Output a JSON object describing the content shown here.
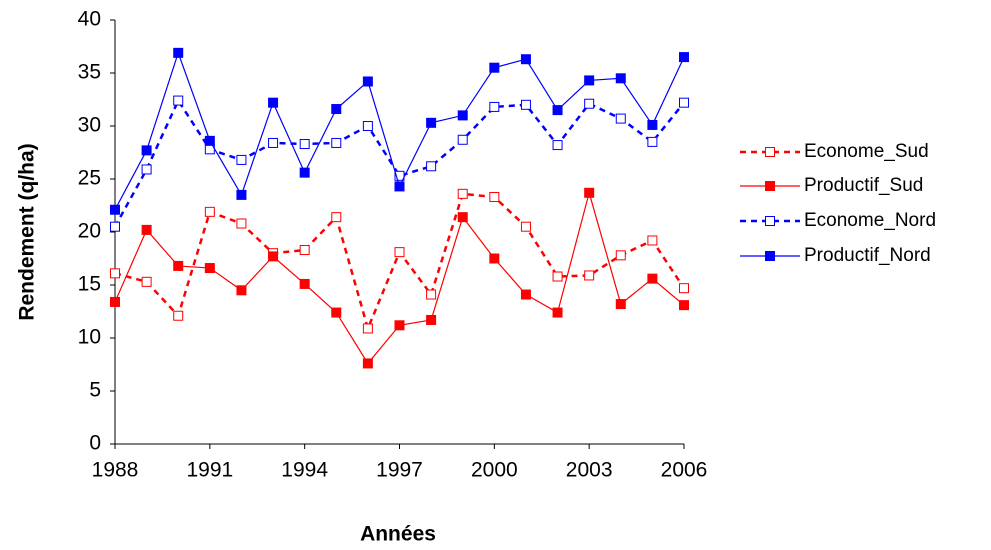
{
  "chart_data": {
    "type": "line",
    "x_label": "Années",
    "y_label": "Rendement (q/ha)",
    "x": [
      1988,
      1989,
      1990,
      1991,
      1992,
      1993,
      1994,
      1995,
      1996,
      1997,
      1998,
      1999,
      2000,
      2001,
      2002,
      2003,
      2004,
      2005,
      2006
    ],
    "series": [
      {
        "name": "Econome_Sud",
        "color": "#ff0000",
        "dashed": true,
        "filled": false,
        "values": [
          16.1,
          15.3,
          12.1,
          21.9,
          20.8,
          18.0,
          18.3,
          21.4,
          10.9,
          18.1,
          14.1,
          23.6,
          23.3,
          20.5,
          15.8,
          15.9,
          17.8,
          19.2,
          14.7
        ]
      },
      {
        "name": "Productif_Sud",
        "color": "#ff0000",
        "dashed": false,
        "filled": true,
        "values": [
          13.4,
          20.2,
          16.8,
          16.6,
          14.5,
          17.7,
          15.1,
          12.4,
          7.6,
          11.2,
          11.7,
          21.4,
          17.5,
          14.1,
          12.4,
          23.7,
          13.2,
          15.6,
          13.1
        ]
      },
      {
        "name": "Econome_Nord",
        "color": "#0000ff",
        "dashed": true,
        "filled": false,
        "values": [
          20.5,
          25.9,
          32.4,
          27.8,
          26.8,
          28.4,
          28.3,
          28.4,
          30.0,
          25.3,
          26.2,
          28.7,
          31.8,
          32.0,
          28.2,
          32.1,
          30.7,
          28.5,
          32.2
        ]
      },
      {
        "name": "Productif_Nord",
        "color": "#0000ff",
        "dashed": false,
        "filled": true,
        "values": [
          22.1,
          27.7,
          36.9,
          28.6,
          23.5,
          32.2,
          25.6,
          31.6,
          34.2,
          24.3,
          30.3,
          31.0,
          35.5,
          36.3,
          31.5,
          34.3,
          34.5,
          30.1,
          36.5
        ]
      }
    ],
    "xlim": [
      1988,
      2006
    ],
    "xticks": [
      1988,
      1991,
      1994,
      1997,
      2000,
      2003,
      2006
    ],
    "ylim": [
      0,
      40
    ],
    "yticks": [
      0,
      5,
      10,
      15,
      20,
      25,
      30,
      35,
      40
    ],
    "grid": false
  }
}
